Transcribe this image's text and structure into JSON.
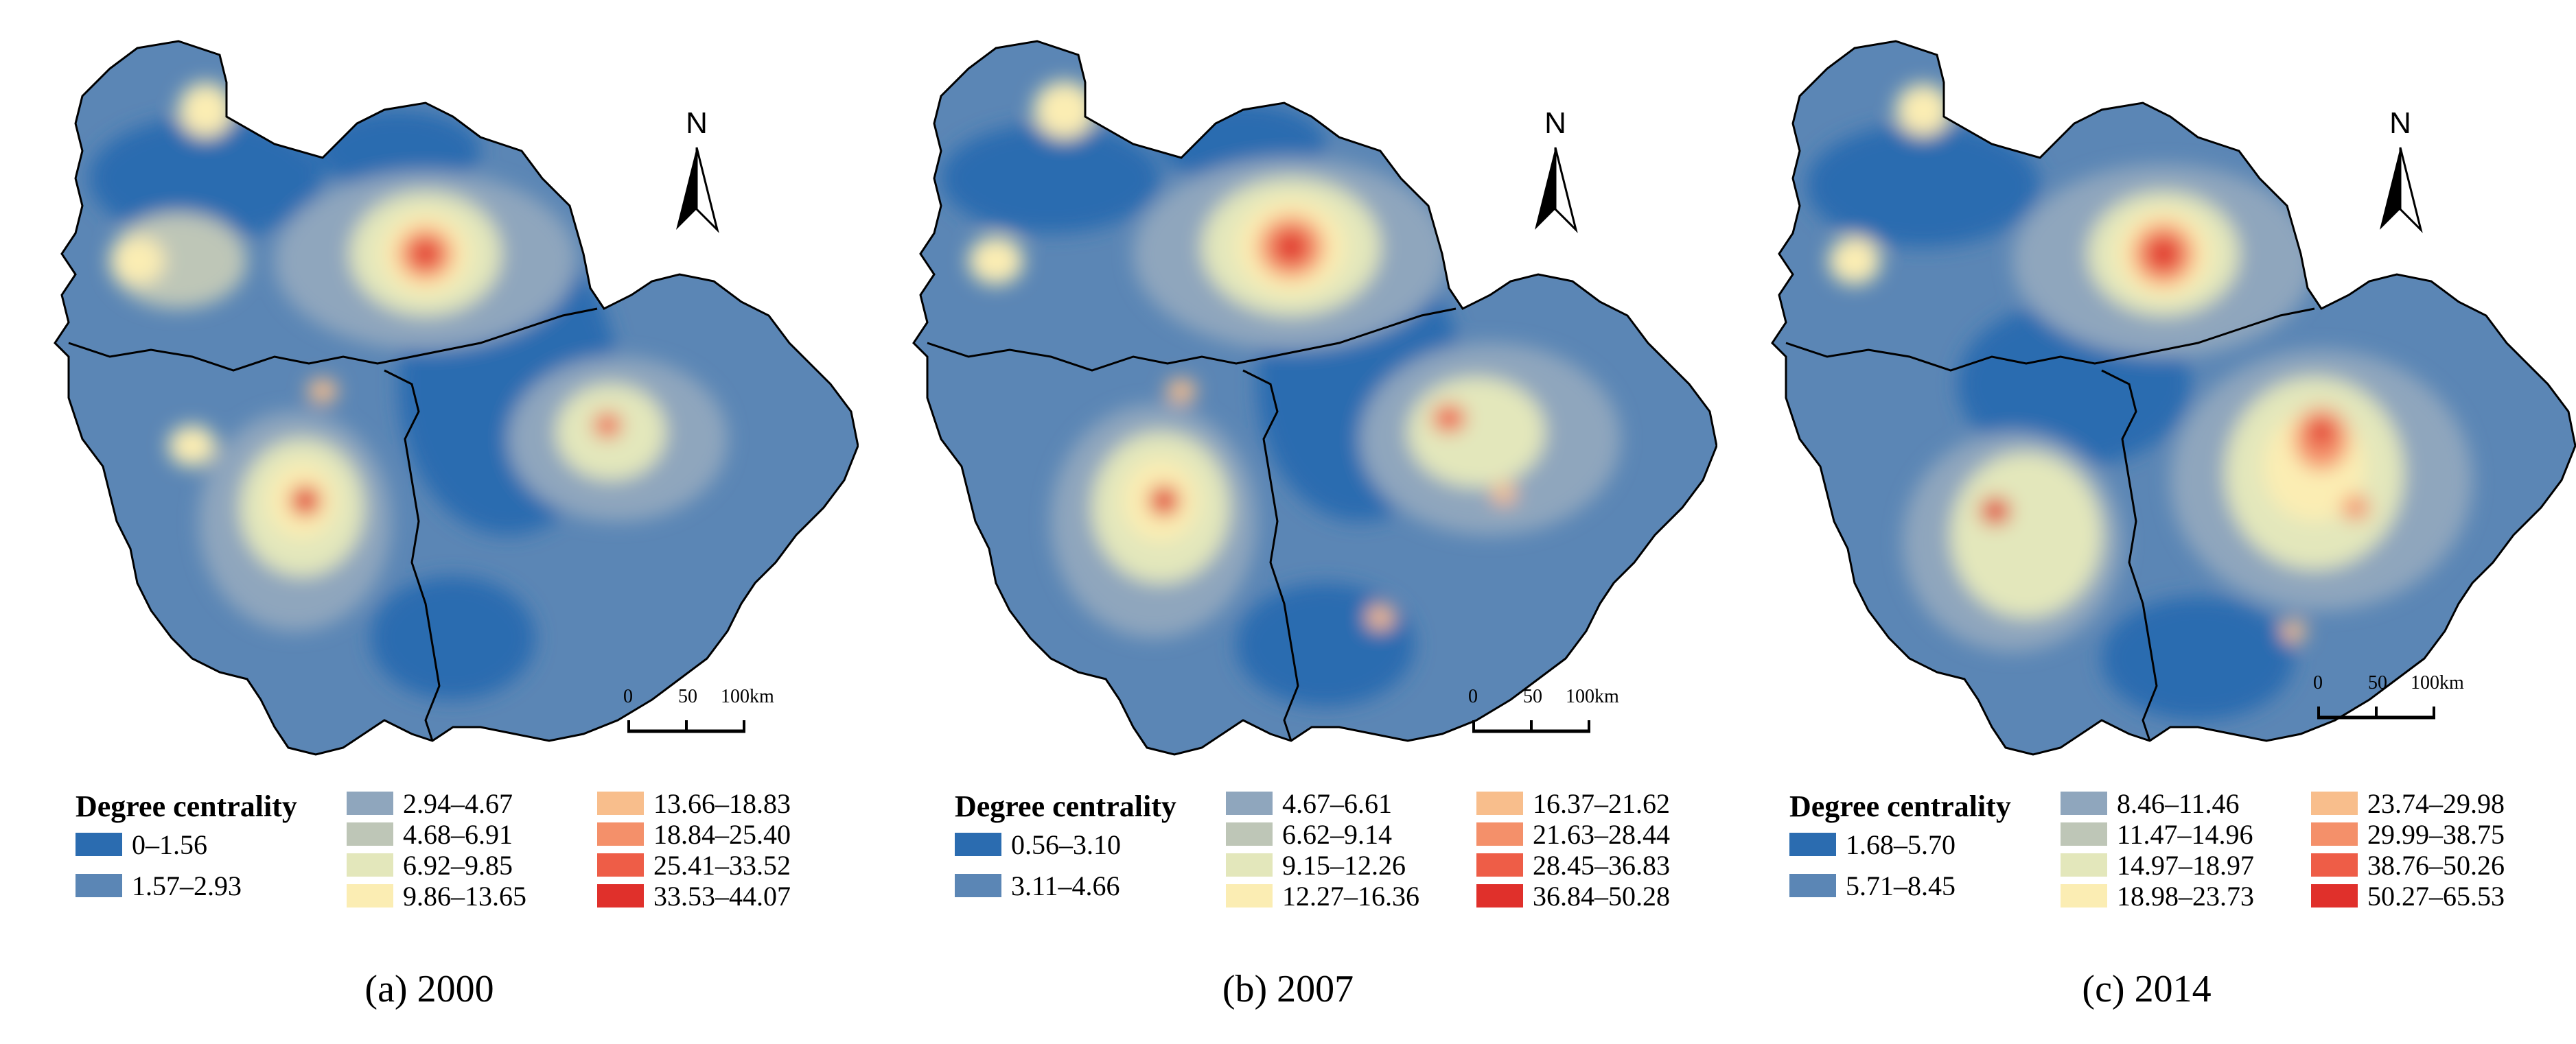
{
  "legend_title": "Degree centrality",
  "north_label": "N",
  "scale_ticks": [
    "0",
    "50",
    "100km"
  ],
  "colors": [
    "#2b6cb0",
    "#5b86b5",
    "#8fa6bd",
    "#bec6b7",
    "#e3e7bb",
    "#fbedb3",
    "#f8be8c",
    "#f4906a",
    "#ee5d47",
    "#e0302b"
  ],
  "panels": [
    {
      "caption": "(a) 2000",
      "classes": [
        "0–1.56",
        "1.57–2.93",
        "2.94–4.67",
        "4.68–6.91",
        "6.92–9.85",
        "9.86–13.65",
        "13.66–18.83",
        "18.84–25.40",
        "25.41–33.52",
        "33.53–44.07"
      ]
    },
    {
      "caption": "(b) 2007",
      "classes": [
        "0.56–3.10",
        "3.11–4.66",
        "4.67–6.61",
        "6.62–9.14",
        "9.15–12.26",
        "12.27–16.36",
        "16.37–21.62",
        "21.63–28.44",
        "28.45–36.83",
        "36.84–50.28"
      ]
    },
    {
      "caption": "(c) 2014",
      "classes": [
        "1.68–5.70",
        "5.71–8.45",
        "8.46–11.46",
        "11.47–14.96",
        "14.97–18.97",
        "18.98–23.73",
        "23.74–29.98",
        "29.99–38.75",
        "38.76–50.26",
        "50.27–65.53"
      ]
    }
  ]
}
